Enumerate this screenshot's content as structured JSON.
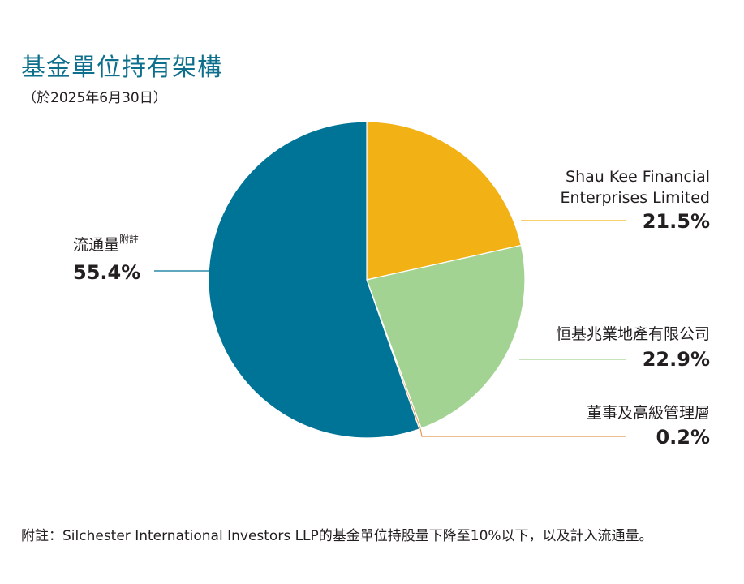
{
  "header": {
    "title": "基金單位持有架構",
    "subtitle": "（於2025年6月30日）"
  },
  "chart_data": {
    "type": "pie",
    "start_angle_deg": 0,
    "direction": "clockwise",
    "slices": [
      {
        "label_lines": [
          "Shau Kee Financial",
          "Enterprises Limited"
        ],
        "value": 21.5,
        "value_label": "21.5%",
        "color": "#f2b215"
      },
      {
        "label_lines": [
          "恒基兆業地產有限公司"
        ],
        "value": 22.9,
        "value_label": "22.9%",
        "color": "#a3d393"
      },
      {
        "label_lines": [
          "董事及高級管理層"
        ],
        "value": 0.2,
        "value_label": "0.2%",
        "color": "#e59a57"
      },
      {
        "label_lines": [
          "流通量"
        ],
        "label_sup": "附註",
        "value": 55.4,
        "value_label": "55.4%",
        "color": "#007497"
      }
    ]
  },
  "footnote": "附註：Silchester International Investors LLP的基金單位持股量下降至10%以下，以及計入流通量。"
}
